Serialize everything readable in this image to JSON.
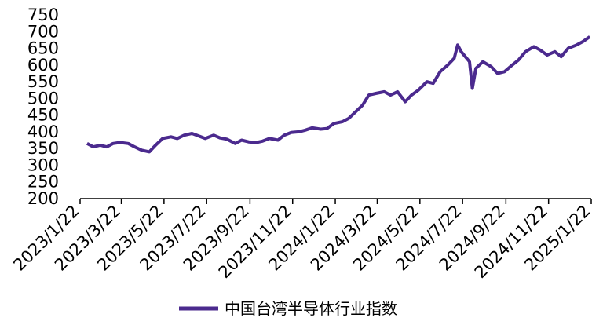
{
  "chart_data": {
    "type": "line",
    "title": "",
    "xlabel": "",
    "ylabel": "",
    "ylim": [
      200,
      750
    ],
    "yticks": [
      200,
      250,
      300,
      350,
      400,
      450,
      500,
      550,
      600,
      650,
      700,
      750
    ],
    "xticks": [
      "2023/1/22",
      "2023/3/22",
      "2023/5/22",
      "2023/7/22",
      "2023/9/22",
      "2023/11/22",
      "2024/1/22",
      "2024/3/22",
      "2024/5/22",
      "2024/7/22",
      "2024/9/22",
      "2024/11/22",
      "2025/1/22"
    ],
    "xlim": [
      "2023/1/22",
      "2025/1/22"
    ],
    "grid": false,
    "legend_position": "bottom",
    "series": [
      {
        "name": "中国台湾半导体行业指数",
        "color": "#4b2a8e",
        "x": [
          "2023/2/1",
          "2023/2/10",
          "2023/2/20",
          "2023/3/1",
          "2023/3/10",
          "2023/3/20",
          "2023/4/1",
          "2023/4/10",
          "2023/4/20",
          "2023/5/1",
          "2023/5/10",
          "2023/5/20",
          "2023/6/1",
          "2023/6/10",
          "2023/6/20",
          "2023/7/1",
          "2023/7/10",
          "2023/7/20",
          "2023/8/1",
          "2023/8/10",
          "2023/8/20",
          "2023/9/1",
          "2023/9/10",
          "2023/9/20",
          "2023/10/1",
          "2023/10/10",
          "2023/10/20",
          "2023/11/1",
          "2023/11/10",
          "2023/11/20",
          "2023/12/1",
          "2023/12/10",
          "2023/12/20",
          "2024/1/1",
          "2024/1/10",
          "2024/1/20",
          "2024/2/1",
          "2024/2/10",
          "2024/2/20",
          "2024/3/1",
          "2024/3/10",
          "2024/3/20",
          "2024/4/1",
          "2024/4/10",
          "2024/4/20",
          "2024/5/1",
          "2024/5/10",
          "2024/5/20",
          "2024/6/1",
          "2024/6/10",
          "2024/6/20",
          "2024/7/1",
          "2024/7/10",
          "2024/7/15",
          "2024/7/20",
          "2024/8/1",
          "2024/8/5",
          "2024/8/10",
          "2024/8/20",
          "2024/9/1",
          "2024/9/10",
          "2024/9/20",
          "2024/10/1",
          "2024/10/10",
          "2024/10/20",
          "2024/11/1",
          "2024/11/10",
          "2024/11/20",
          "2024/12/1",
          "2024/12/10",
          "2024/12/20",
          "2025/1/1",
          "2025/1/10",
          "2025/1/20"
        ],
        "values": [
          365,
          355,
          360,
          355,
          365,
          368,
          365,
          355,
          345,
          340,
          360,
          380,
          385,
          380,
          390,
          395,
          388,
          380,
          390,
          382,
          378,
          365,
          375,
          370,
          368,
          372,
          380,
          375,
          390,
          398,
          400,
          405,
          412,
          408,
          410,
          425,
          430,
          440,
          460,
          480,
          510,
          515,
          520,
          510,
          520,
          490,
          510,
          525,
          550,
          545,
          580,
          600,
          620,
          660,
          640,
          610,
          530,
          590,
          610,
          595,
          575,
          580,
          600,
          615,
          640,
          655,
          645,
          630,
          640,
          625,
          650,
          660,
          670,
          685
        ]
      }
    ]
  }
}
